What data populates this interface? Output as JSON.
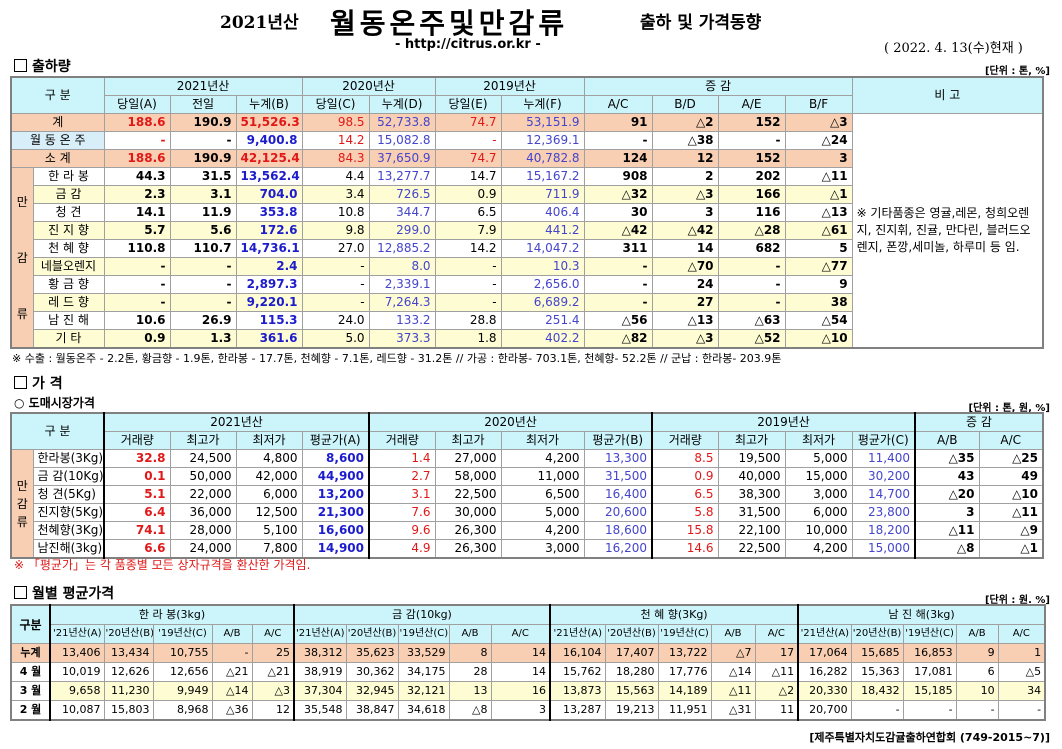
{
  "header": {
    "title_prefix": "2021년산",
    "title_main": "월동온주및만감류",
    "title_suffix": "출하 및 가격동향",
    "url": "- http://citrus.or.kr -",
    "date": "( 2022. 4. 13(수)현재 )"
  },
  "shipment": {
    "section": "출하량",
    "unit": "[단위 : 톤, %]",
    "col_label": "구    분",
    "groups": [
      "2021년산",
      "2020년산",
      "2019년산",
      "증    감"
    ],
    "subheads": [
      "당일(A)",
      "전일",
      "누계(B)",
      "당일(C)",
      "누계(D)",
      "당일(E)",
      "누계(F)",
      "A/C",
      "B/D",
      "A/E",
      "B/F"
    ],
    "remark_header": "비 고",
    "remark": "※ 기타품종은 영귤,레몬, 청희오렌지, 진지휘, 진귤, 만다린, 블러드오렌지, 폰깡,세미놀, 하루미 등 임.",
    "group_label": "만감류",
    "rows": [
      {
        "label": "계",
        "values": [
          "188.6",
          "190.9",
          "51,526.3",
          "98.5",
          "52,733.8",
          "74.7",
          "53,151.9",
          "91",
          "△2",
          "152",
          "△3"
        ]
      },
      {
        "label": "월 동 온 주",
        "values": [
          "-",
          "-",
          "9,400.8",
          "14.2",
          "15,082.8",
          "-",
          "12,369.1",
          "-",
          "△38",
          "-",
          "△24"
        ]
      },
      {
        "label": "소    계",
        "values": [
          "188.6",
          "190.9",
          "42,125.4",
          "84.3",
          "37,650.9",
          "74.7",
          "40,782.8",
          "124",
          "12",
          "152",
          "3"
        ]
      },
      {
        "label": "한 라 봉",
        "values": [
          "44.3",
          "31.5",
          "13,562.4",
          "4.4",
          "13,277.7",
          "14.7",
          "15,167.2",
          "908",
          "2",
          "202",
          "△11"
        ]
      },
      {
        "label": "금    감",
        "values": [
          "2.3",
          "3.1",
          "704.0",
          "3.4",
          "726.5",
          "0.9",
          "711.9",
          "△32",
          "△3",
          "166",
          "△1"
        ]
      },
      {
        "label": "청    견",
        "values": [
          "14.1",
          "11.9",
          "353.8",
          "10.8",
          "344.7",
          "6.5",
          "406.4",
          "30",
          "3",
          "116",
          "△13"
        ]
      },
      {
        "label": "진 지 향",
        "values": [
          "5.7",
          "5.6",
          "172.6",
          "9.8",
          "299.0",
          "7.9",
          "441.2",
          "△42",
          "△42",
          "△28",
          "△61"
        ]
      },
      {
        "label": "천 혜 향",
        "values": [
          "110.8",
          "110.7",
          "14,736.1",
          "27.0",
          "12,885.2",
          "14.2",
          "14,047.2",
          "311",
          "14",
          "682",
          "5"
        ]
      },
      {
        "label": "네블오렌지",
        "values": [
          "-",
          "-",
          "2.4",
          "-",
          "8.0",
          "-",
          "10.3",
          "-",
          "△70",
          "-",
          "△77"
        ]
      },
      {
        "label": "황 금 향",
        "values": [
          "-",
          "-",
          "2,897.3",
          "-",
          "2,339.1",
          "-",
          "2,656.0",
          "-",
          "24",
          "-",
          "9"
        ]
      },
      {
        "label": "레 드 향",
        "values": [
          "-",
          "-",
          "9,220.1",
          "-",
          "7,264.3",
          "-",
          "6,689.2",
          "-",
          "27",
          "-",
          "38"
        ]
      },
      {
        "label": "남 진 해",
        "values": [
          "10.6",
          "26.9",
          "115.3",
          "24.0",
          "133.2",
          "28.8",
          "251.4",
          "△56",
          "△13",
          "△63",
          "△54"
        ]
      },
      {
        "label": "기    타",
        "values": [
          "0.9",
          "1.3",
          "361.6",
          "5.0",
          "373.3",
          "1.8",
          "402.2",
          "△82",
          "△3",
          "△52",
          "△10"
        ]
      }
    ],
    "note": "※ 수출 : 월동온주 - 2.2톤, 황금향 - 1.9톤, 한라봉 - 17.7톤, 천혜향 - 7.1톤, 레드향 - 31.2톤 // 가공 : 한라봉- 703.1톤, 천혜향- 52.2톤 // 군납 : 한라봉- 203.9톤"
  },
  "price": {
    "section": "가     격",
    "subsection": "○ 도매시장가격",
    "unit": "[단위 : 톤, 원, %]",
    "col_label": "구    분",
    "groups": [
      "2021년산",
      "2020년산",
      "2019년산",
      "증    감"
    ],
    "subheads": [
      "거래량",
      "최고가",
      "최저가",
      "평균가(A)",
      "거래량",
      "최고가",
      "최저가",
      "평균가(B)",
      "거래량",
      "최고가",
      "최저가",
      "평균가(C)",
      "A/B",
      "A/C"
    ],
    "group_label": "만감류",
    "rows": [
      {
        "label": "한라봉(3Kg)",
        "values": [
          "32.8",
          "24,500",
          "4,800",
          "8,600",
          "1.4",
          "27,000",
          "4,200",
          "13,300",
          "8.5",
          "19,500",
          "5,000",
          "11,400",
          "△35",
          "△25"
        ]
      },
      {
        "label": "금  감(10Kg)",
        "values": [
          "0.1",
          "50,000",
          "42,000",
          "44,900",
          "2.7",
          "58,000",
          "11,000",
          "31,500",
          "0.9",
          "40,000",
          "15,000",
          "30,200",
          "43",
          "49"
        ]
      },
      {
        "label": "청  견(5Kg)",
        "values": [
          "5.1",
          "22,000",
          "6,000",
          "13,200",
          "3.1",
          "22,500",
          "6,500",
          "16,400",
          "6.5",
          "38,300",
          "3,000",
          "14,700",
          "△20",
          "△10"
        ]
      },
      {
        "label": "진지향(5Kg)",
        "values": [
          "6.4",
          "36,000",
          "12,500",
          "21,300",
          "7.6",
          "30,000",
          "5,000",
          "20,600",
          "5.8",
          "31,500",
          "6,000",
          "23,800",
          "3",
          "△11"
        ]
      },
      {
        "label": "천혜향(3Kg)",
        "values": [
          "74.1",
          "28,000",
          "5,100",
          "16,600",
          "9.6",
          "26,300",
          "4,200",
          "18,600",
          "15.8",
          "22,100",
          "10,000",
          "18,200",
          "△11",
          "△9"
        ]
      },
      {
        "label": "남진해(3kg)",
        "values": [
          "6.6",
          "24,000",
          "7,800",
          "14,900",
          "4.9",
          "26,300",
          "3,000",
          "16,200",
          "14.6",
          "22,500",
          "4,200",
          "15,000",
          "△8",
          "△1"
        ]
      }
    ],
    "note": "※ 「평균가」는 각 품종별 모든 상자규격을 환산한 가격임."
  },
  "monthly": {
    "section": "월별 평균가격",
    "unit": "[단위 : 원. %]",
    "col_label": "구분",
    "products": [
      "한 라 봉(3kg)",
      "금   감(10kg)",
      "천 혜 향(3Kg)",
      "남 진 해(3kg)"
    ],
    "subheads": [
      "'21년산(A)",
      "'20년산(B)",
      "'19년산(C)",
      "A/B",
      "A/C"
    ],
    "rows": [
      {
        "label": "누계",
        "values": [
          "13,406",
          "13,434",
          "10,755",
          "-",
          "25",
          "38,312",
          "35,623",
          "33,529",
          "8",
          "14",
          "16,104",
          "17,407",
          "13,722",
          "△7",
          "17",
          "17,064",
          "15,685",
          "16,853",
          "9",
          "1"
        ]
      },
      {
        "label": "4 월",
        "values": [
          "10,019",
          "12,626",
          "12,656",
          "△21",
          "△21",
          "38,919",
          "30,362",
          "34,175",
          "28",
          "14",
          "15,762",
          "18,280",
          "17,776",
          "△14",
          "△11",
          "16,282",
          "15,363",
          "17,081",
          "6",
          "△5"
        ]
      },
      {
        "label": "3 월",
        "values": [
          "9,658",
          "11,230",
          "9,949",
          "△14",
          "△3",
          "37,304",
          "32,945",
          "32,121",
          "13",
          "16",
          "13,873",
          "15,563",
          "14,189",
          "△11",
          "△2",
          "20,330",
          "18,432",
          "15,185",
          "10",
          "34"
        ]
      },
      {
        "label": "2 월",
        "values": [
          "10,087",
          "15,803",
          "8,968",
          "△36",
          "12",
          "35,548",
          "38,847",
          "34,618",
          "△8",
          "3",
          "13,287",
          "19,213",
          "11,951",
          "△31",
          "11",
          "20,700",
          "-",
          "-",
          "-",
          "-"
        ]
      }
    ],
    "source": "[제주특별자치도감귤출하연합회 (749-2015~7)]"
  }
}
